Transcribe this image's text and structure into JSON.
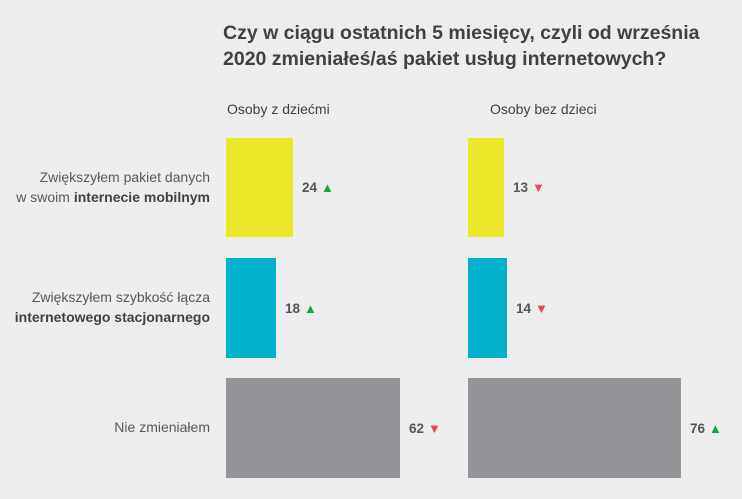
{
  "header": {
    "title_line1": "Czy w ciągu ostatnich 5 miesięcy, czyli od września",
    "title_line2": "2020 zmieniałeś/aś pakiet usług internetowych?"
  },
  "colors": {
    "background": "#ededee",
    "title_text": "#414042",
    "label_text": "#58595b",
    "positive": "#1aa43a",
    "negative": "#f73b5c",
    "bar_yellow": "#e9e728",
    "bar_cyan": "#00b1cb",
    "bar_gray": "#939598"
  },
  "chart_data": {
    "type": "bar",
    "orientation": "horizontal",
    "title": "Czy w ciągu ostatnich 5 miesięcy, czyli od września 2020 zmieniałeś/aś pakiet usług internetowych?",
    "group_headers": [
      "Osoby z dziećmi",
      "Osoby bez dzieci"
    ],
    "value_unit": "percent",
    "xlim": [
      0,
      100
    ],
    "legend": "trend arrows: up = increase vs previous wave, down = decrease",
    "rows": [
      {
        "label": "Zwiększyłem pakiet danych w swoim internecie mobilnym",
        "label_line1": "Zwiększyłem pakiet danych",
        "label_line2_regular": "w swoim ",
        "label_line2_bold": "internecie mobilnym",
        "bar_color": "#e9e728",
        "values": [
          {
            "group": "Osoby z dziećmi",
            "value": 24,
            "trend": "up"
          },
          {
            "group": "Osoby bez dzieci",
            "value": 13,
            "trend": "down"
          }
        ]
      },
      {
        "label": "Zwiększyłem szybkość łącza internetowego stacjonarnego",
        "label_line1": "Zwiększyłem szybkość łącza",
        "label_line2_regular": "",
        "label_line2_bold": "internetowego stacjonarnego",
        "bar_color": "#00b1cb",
        "values": [
          {
            "group": "Osoby z dziećmi",
            "value": 18,
            "trend": "up"
          },
          {
            "group": "Osoby bez dzieci",
            "value": 14,
            "trend": "down"
          }
        ]
      },
      {
        "label": "Nie zmieniałem",
        "label_line1": "Nie zmieniałem",
        "label_line2_regular": "",
        "label_line2_bold": "",
        "bar_color": "#939598",
        "values": [
          {
            "group": "Osoby z dziećmi",
            "value": 62,
            "trend": "down"
          },
          {
            "group": "Osoby bez dzieci",
            "value": 76,
            "trend": "up"
          }
        ]
      }
    ]
  }
}
